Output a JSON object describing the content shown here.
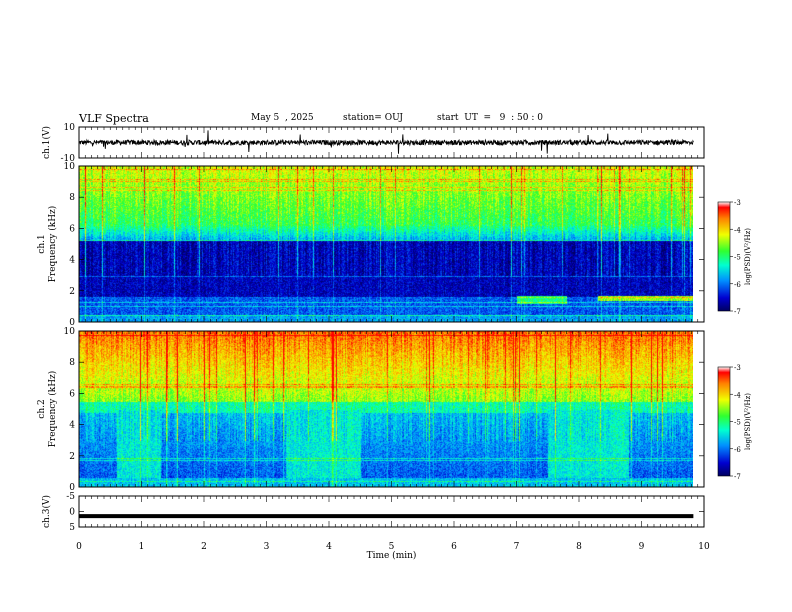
{
  "header": {
    "title": "VLF Spectra",
    "date": "May 5  , 2025",
    "station": "station= OUJ",
    "start": "start  UT  =   9  : 50 : 0"
  },
  "chart_data": [
    {
      "type": "line",
      "panel": "ch1-waveform",
      "ylabel": "ch.1(V)",
      "ylim": [
        -10,
        10
      ],
      "yticks": [
        "10",
        "-10"
      ],
      "baseline": 0,
      "color": "#000000"
    },
    {
      "type": "heatmap",
      "panel": "ch1-spectrogram",
      "ylabel_line1": "ch.1",
      "ylabel_line2": "Frequency (kHz)",
      "ylim": [
        0,
        10
      ],
      "yticks": [
        "0",
        "2",
        "4",
        "6",
        "8",
        "10"
      ],
      "colorbar": {
        "label": "log(PSD)(V²/Hz)",
        "range": [
          -7,
          -3
        ],
        "ticks": [
          "-3",
          "-4",
          "-5",
          "-6",
          "-7"
        ]
      }
    },
    {
      "type": "heatmap",
      "panel": "ch2-spectrogram",
      "ylabel_line1": "ch.2",
      "ylabel_line2": "Frequency (kHz)",
      "ylim": [
        0,
        10
      ],
      "yticks": [
        "0",
        "2",
        "4",
        "6",
        "8",
        "10"
      ],
      "colorbar": {
        "label": "log(PSD)(V²/Hz)",
        "range": [
          -7,
          -3
        ],
        "ticks": [
          "-3",
          "-4",
          "-5",
          "-6",
          "-7"
        ]
      }
    },
    {
      "type": "line",
      "panel": "ch3-waveform",
      "ylabel": "ch.3(V)",
      "ylim": [
        -5,
        5
      ],
      "yticks": [
        "5",
        "0",
        "-5"
      ],
      "value": -1.5,
      "color": "#000000"
    }
  ],
  "xaxis": {
    "label": "Time  (min)",
    "ticks": [
      "0",
      "1",
      "2",
      "3",
      "4",
      "5",
      "6",
      "7",
      "8",
      "9",
      "10"
    ],
    "xlim": [
      0,
      10
    ],
    "data_end": 9.83
  }
}
